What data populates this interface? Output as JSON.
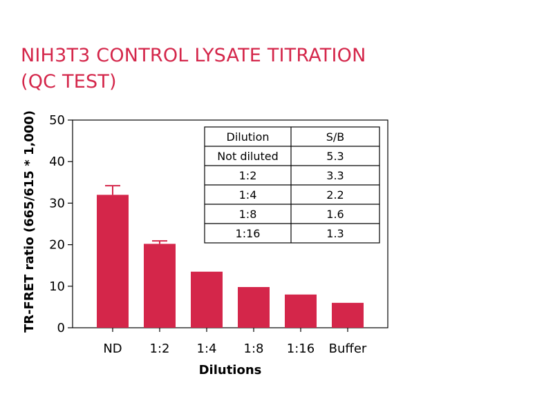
{
  "chart_data": {
    "type": "bar",
    "title": "NIH3T3 CONTROL LYSATE TITRATION (QC TEST)",
    "title_lines": [
      "NIH3T3 CONTROL LYSATE TITRATION",
      "(QC TEST)"
    ],
    "xlabel": "Dilutions",
    "ylabel": "TR-FRET ratio (665/615 * 1,000)",
    "categories": [
      "ND",
      "1:2",
      "1:4",
      "1:8",
      "1:16",
      "Buffer"
    ],
    "values": [
      32,
      20.2,
      13.5,
      9.8,
      8,
      6
    ],
    "error_plus": [
      2.2,
      0.7,
      0,
      0,
      0,
      0
    ],
    "ylim": [
      0,
      50
    ],
    "yticks": [
      0,
      10,
      20,
      30,
      40,
      50
    ],
    "grid": false,
    "bar_color": "#d4264a",
    "title_color": "#d4264a",
    "inset_table": {
      "headers": [
        "Dilution",
        "S/B"
      ],
      "rows": [
        [
          "Not diluted",
          "5.3"
        ],
        [
          "1:2",
          "3.3"
        ],
        [
          "1:4",
          "2.2"
        ],
        [
          "1:8",
          "1.6"
        ],
        [
          "1:16",
          "1.3"
        ]
      ]
    }
  }
}
